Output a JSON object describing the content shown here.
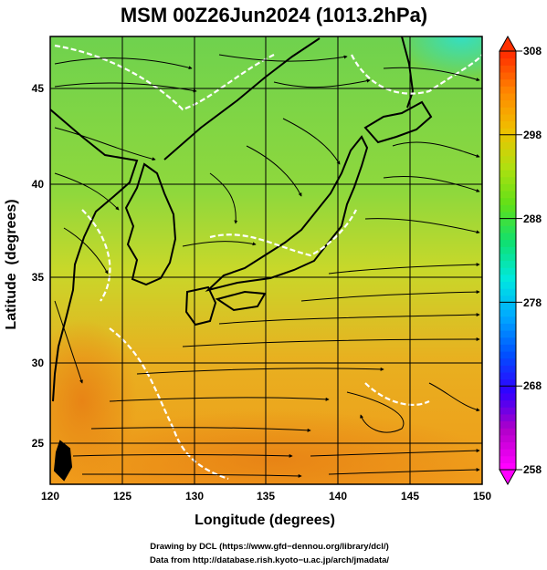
{
  "title": "MSM 00Z26Jun2024 (1013.2hPa)",
  "x_axis": {
    "label": "Longitude (degrees)",
    "ticks": [
      "120",
      "125",
      "130",
      "135",
      "140",
      "145",
      "150"
    ],
    "range": [
      120,
      150
    ]
  },
  "y_axis": {
    "label": "Latitude  (degrees)",
    "ticks": [
      "25",
      "30",
      "35",
      "40",
      "45"
    ],
    "range": [
      22.4,
      47.6
    ]
  },
  "colorbar": {
    "labels": [
      "308",
      "298",
      "288",
      "278",
      "268",
      "258"
    ],
    "min": 258,
    "max": 308,
    "colors": [
      "#ff00ff",
      "#b000c8",
      "#3000ff",
      "#0050ff",
      "#00a8ff",
      "#00e8e0",
      "#10e070",
      "#60e018",
      "#b0e010",
      "#f0c000",
      "#ff8800",
      "#ff3000"
    ]
  },
  "field_colors": {
    "north": "#6fd24e",
    "mid": "#c8d82a",
    "south": "#f09a1a",
    "cold_ne": "#33dfc3",
    "warm_core": "#e88415"
  },
  "footer": {
    "line1": "Drawing by DCL (https://www.gfd−dennou.org/library/dcl/)",
    "line2": "Data from http://database.rish.kyoto−u.ac.jp/arch/jmadata/"
  }
}
